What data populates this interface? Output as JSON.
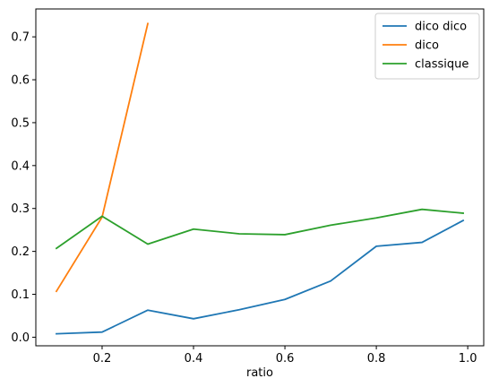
{
  "chart_data": {
    "type": "line",
    "title": "",
    "xlabel": "ratio",
    "ylabel": "",
    "xlim": [
      0.055,
      1.035
    ],
    "ylim": [
      -0.02,
      0.765
    ],
    "xticks": [
      0.2,
      0.4,
      0.6,
      0.8,
      1.0
    ],
    "xtick_labels": [
      "0.2",
      "0.4",
      "0.6",
      "0.8",
      "1.0"
    ],
    "yticks": [
      0.0,
      0.1,
      0.2,
      0.3,
      0.4,
      0.5,
      0.6,
      0.7
    ],
    "ytick_labels": [
      "0.0",
      "0.1",
      "0.2",
      "0.3",
      "0.4",
      "0.5",
      "0.6",
      "0.7"
    ],
    "grid": false,
    "legend_position": "top-right",
    "series": [
      {
        "name": "dico dico",
        "color": "#1f77b4",
        "x": [
          0.1,
          0.2,
          0.3,
          0.4,
          0.5,
          0.6,
          0.7,
          0.8,
          0.9,
          0.99
        ],
        "y": [
          0.008,
          0.012,
          0.063,
          0.043,
          0.064,
          0.088,
          0.131,
          0.212,
          0.221,
          0.272
        ]
      },
      {
        "name": "dico",
        "color": "#ff7f0e",
        "x": [
          0.1,
          0.2,
          0.3
        ],
        "y": [
          0.107,
          0.28,
          0.731
        ]
      },
      {
        "name": "classique",
        "color": "#2ca02c",
        "x": [
          0.1,
          0.2,
          0.3,
          0.4,
          0.5,
          0.6,
          0.7,
          0.8,
          0.9,
          0.99
        ],
        "y": [
          0.207,
          0.282,
          0.217,
          0.252,
          0.241,
          0.239,
          0.261,
          0.278,
          0.298,
          0.289
        ]
      }
    ]
  }
}
